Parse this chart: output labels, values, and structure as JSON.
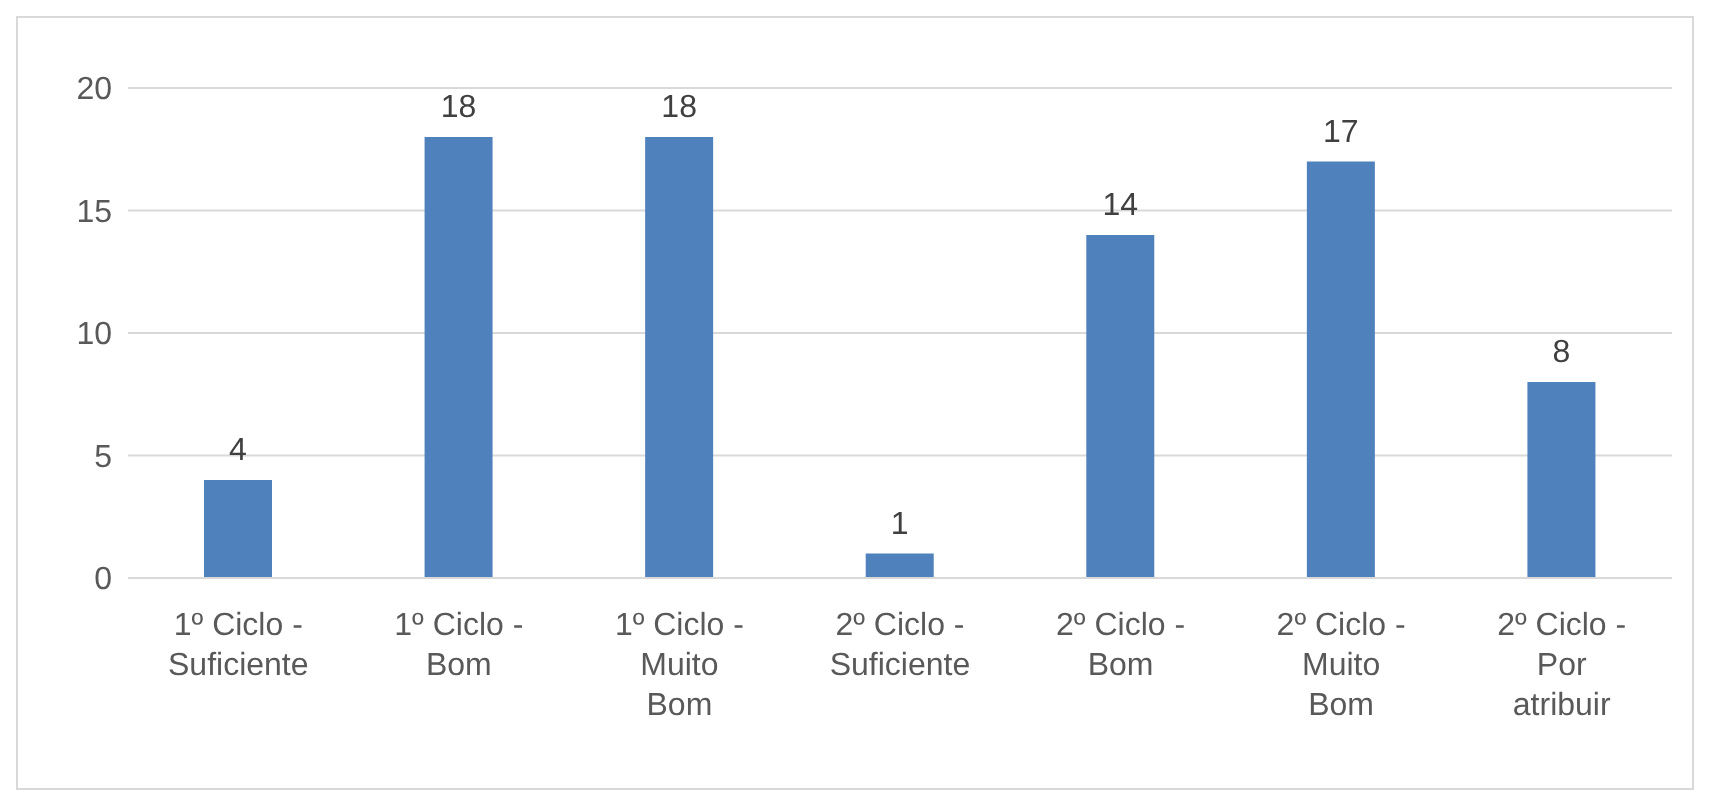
{
  "chart_data": {
    "type": "bar",
    "categories": [
      "1º Ciclo - Suficiente",
      "1º Ciclo - Bom",
      "1º Ciclo - Muito Bom",
      "2º Ciclo - Suficiente",
      "2º Ciclo - Bom",
      "2º Ciclo - Muito Bom",
      "2º Ciclo - Por atribuir"
    ],
    "values": [
      4,
      18,
      18,
      1,
      14,
      17,
      8
    ],
    "color": "#4f81bd",
    "ylim": [
      0,
      20
    ],
    "yticks": [
      0,
      5,
      10,
      15,
      20
    ],
    "grid": "y",
    "data_labels": true
  }
}
